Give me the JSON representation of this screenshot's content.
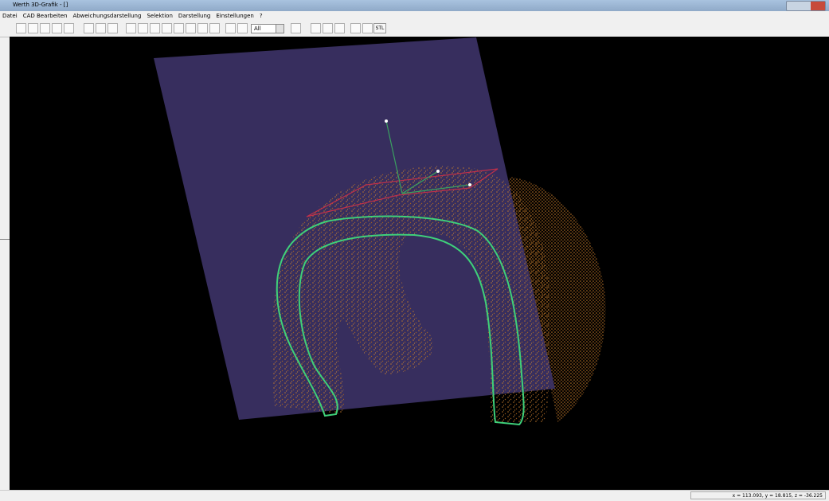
{
  "window": {
    "title": "Werth 3D-Grafik - []"
  },
  "menu": [
    "Datei",
    "CAD Bearbeiten",
    "Abweichungsdarstellung",
    "Selektion",
    "Darstellung",
    "Einstellungen",
    "?"
  ],
  "toolbar": {
    "dropdown": "All",
    "stl_button": "STL"
  },
  "status": {
    "coordinates": "x = 113.093, y = 18.815, z = -36.225"
  }
}
